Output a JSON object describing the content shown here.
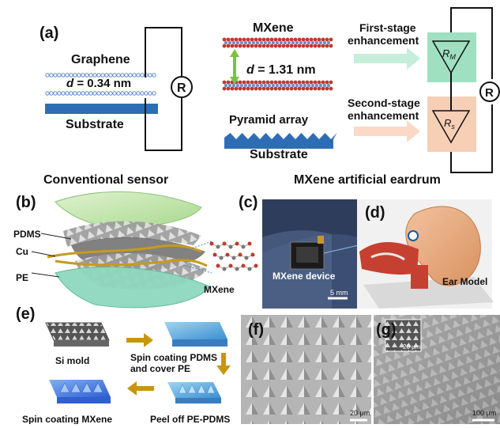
{
  "panels": {
    "a": "(a)",
    "b": "(b)",
    "c": "(c)",
    "d": "(d)",
    "e": "(e)",
    "f": "(f)",
    "g": "(g)"
  },
  "panel_a": {
    "graphene": "Graphene",
    "d_graphene": "= 0.34 nm",
    "substrate": "Substrate",
    "r_symbol": "R",
    "conventional_sensor": "Conventional sensor",
    "mxene": "MXene",
    "d_mxene": "= 1.31 nm",
    "d_symbol": "d",
    "pyramid_array": "Pyramid array",
    "substrate2": "Substrate",
    "first_stage_1": "First-stage",
    "first_stage_2": "enhancement",
    "second_stage_1": "Second-stage",
    "second_stage_2": "enhancement",
    "rm_label": "R",
    "rm_sub": "M",
    "rs_label": "R",
    "rs_sub": "s",
    "mxene_eardrum": "MXene artificial eardrum"
  },
  "panel_b": {
    "pdms": "PDMS",
    "cu": "Cu",
    "pe": "PE",
    "mxene": "MXene"
  },
  "panel_c": {
    "device": "MXene device",
    "scale": "5 mm"
  },
  "panel_d": {
    "ear_model": "Ear Model"
  },
  "panel_e": {
    "si_mold": "Si mold",
    "spin_pdms_1": "Spin coating PDMS",
    "spin_pdms_2": "and cover PE",
    "spin_mxene": "Spin coating MXene",
    "peel_off": "Peel off PE-PDMS"
  },
  "panel_f": {
    "scale": "20 μm"
  },
  "panel_g": {
    "scale": "100 μm",
    "inset_scale": "20 μm"
  },
  "colors": {
    "substrate_blue": "#2e6db5",
    "graphene_dot": "#5a86c6",
    "mxene_red": "#c0392b",
    "green_box": "#9fe0c0",
    "orange_box": "#f6cfb5",
    "green_arrow": "#c5eedb",
    "orange_arrow": "#fbd9c6",
    "arrow_gold": "#c8960c"
  }
}
